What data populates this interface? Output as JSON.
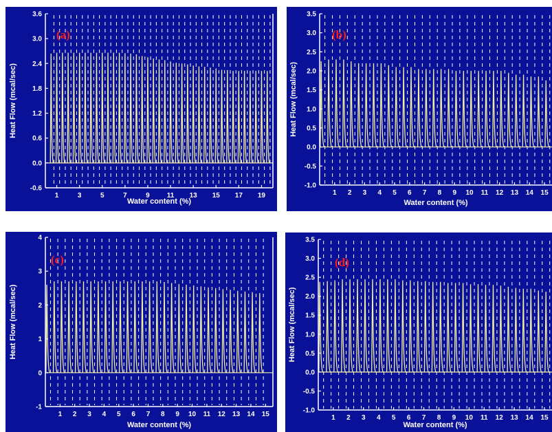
{
  "chart_data": [
    {
      "type": "line",
      "panel_label": "(a)",
      "xlabel": "Water content (%)",
      "ylabel": "Heat Flow (mcal/sec)",
      "xlim": [
        0,
        20
      ],
      "ylim": [
        -0.6,
        3.6
      ],
      "x_ticks": [
        1,
        3,
        5,
        7,
        9,
        11,
        13,
        15,
        17,
        19
      ],
      "y_ticks": [
        -0.6,
        0.0,
        0.6,
        1.2,
        1.8,
        2.4,
        3.0,
        3.6
      ],
      "y_tick_labels": [
        "-0.6",
        "0.0",
        "0.6",
        "1.2",
        "1.8",
        "2.4",
        "3.0",
        "3.6"
      ],
      "dashed_gridlines": true,
      "peak_x": [
        0.5,
        1.0,
        1.5,
        2.0,
        2.5,
        3.0,
        3.5,
        4.0,
        4.5,
        5.0,
        5.5,
        6.0,
        6.5,
        7.0,
        7.5,
        8.0,
        8.5,
        9.0,
        9.5,
        10.0,
        10.5,
        11.0,
        11.5,
        12.0,
        12.5,
        13.0,
        13.5,
        14.0,
        14.5,
        15.0,
        15.5,
        16.0,
        16.5,
        17.0,
        17.5,
        18.0,
        18.5,
        19.0,
        19.5
      ],
      "peak_heights": [
        2.64,
        2.66,
        2.66,
        2.66,
        2.66,
        2.66,
        2.66,
        2.66,
        2.66,
        2.66,
        2.66,
        2.66,
        2.66,
        2.65,
        2.64,
        2.62,
        2.58,
        2.55,
        2.52,
        2.5,
        2.48,
        2.45,
        2.42,
        2.4,
        2.38,
        2.35,
        2.33,
        2.32,
        2.3,
        2.28,
        2.25,
        2.24,
        2.22,
        2.22,
        2.22,
        2.22,
        2.22,
        2.22,
        2.22
      ]
    },
    {
      "type": "line",
      "panel_label": "(b)",
      "xlabel": "Water content (%)",
      "ylabel": "Heat Flow (mcal/sec)",
      "xlim": [
        0,
        15.5
      ],
      "ylim": [
        -1.0,
        3.5
      ],
      "x_ticks": [
        1,
        2,
        3,
        4,
        5,
        6,
        7,
        8,
        9,
        10,
        11,
        12,
        13,
        14,
        15
      ],
      "y_ticks": [
        -1.0,
        -0.5,
        0.0,
        0.5,
        1.0,
        1.5,
        2.0,
        2.5,
        3.0,
        3.5
      ],
      "y_tick_labels": [
        "-1.0",
        "-0.5",
        "0.0",
        "0.5",
        "1.0",
        "1.5",
        "2.0",
        "2.5",
        "3.0",
        "3.5"
      ],
      "dashed_gridlines": true,
      "peak_x": [
        0.1,
        0.6,
        1.1,
        1.6,
        2.1,
        2.6,
        3.1,
        3.6,
        4.1,
        4.6,
        5.1,
        5.6,
        6.1,
        6.6,
        7.1,
        7.6,
        8.1,
        8.6,
        9.1,
        9.6,
        10.1,
        10.6,
        11.1,
        11.6,
        12.1,
        12.6,
        13.1,
        13.6,
        14.1,
        14.6,
        15.1
      ],
      "peak_heights": [
        2.25,
        2.3,
        2.3,
        2.3,
        2.25,
        2.2,
        2.2,
        2.2,
        2.2,
        2.15,
        2.1,
        2.1,
        2.1,
        2.05,
        2.05,
        2.05,
        2.05,
        2.05,
        2.0,
        2.0,
        2.0,
        2.0,
        2.0,
        2.0,
        2.0,
        1.95,
        1.9,
        1.9,
        1.85,
        1.85,
        1.75
      ]
    },
    {
      "type": "line",
      "panel_label": "(c)",
      "xlabel": "Water content (%)",
      "ylabel": "Heat Flow (mcal/sec)",
      "xlim": [
        0,
        15.5
      ],
      "ylim": [
        -1,
        4
      ],
      "x_ticks": [
        1,
        2,
        3,
        4,
        5,
        6,
        7,
        8,
        9,
        10,
        11,
        12,
        13,
        14,
        15
      ],
      "y_ticks": [
        -1,
        0,
        1,
        2,
        3,
        4
      ],
      "y_tick_labels": [
        "-1",
        "0",
        "1",
        "2",
        "3",
        "4"
      ],
      "dashed_gridlines": true,
      "peak_x": [
        0.1,
        0.6,
        1.1,
        1.6,
        2.1,
        2.6,
        3.1,
        3.6,
        4.1,
        4.6,
        5.1,
        5.6,
        6.1,
        6.6,
        7.1,
        7.6,
        8.1,
        8.6,
        9.1,
        9.6,
        10.1,
        10.6,
        11.1,
        11.6,
        12.1,
        12.6,
        13.1,
        13.6,
        14.1,
        14.6
      ],
      "peak_heights": [
        2.6,
        2.7,
        2.7,
        2.7,
        2.7,
        2.7,
        2.7,
        2.7,
        2.7,
        2.7,
        2.7,
        2.7,
        2.7,
        2.7,
        2.7,
        2.7,
        2.68,
        2.65,
        2.62,
        2.6,
        2.58,
        2.55,
        2.52,
        2.5,
        2.47,
        2.45,
        2.42,
        2.4,
        2.38,
        2.35
      ]
    },
    {
      "type": "line",
      "panel_label": "(d)",
      "xlabel": "Water content (%)",
      "ylabel": "Heat Flow (mcal/sec)",
      "xlim": [
        0,
        15.5
      ],
      "ylim": [
        -1.0,
        3.5
      ],
      "x_ticks": [
        1,
        2,
        3,
        4,
        5,
        6,
        7,
        8,
        9,
        10,
        11,
        12,
        13,
        14,
        15
      ],
      "y_ticks": [
        -1.0,
        -0.5,
        0.0,
        0.5,
        1.0,
        1.5,
        2.0,
        2.5,
        3.0,
        3.5
      ],
      "y_tick_labels": [
        "-1.0",
        "-0.5",
        "0.0",
        "0.5",
        "1.0",
        "1.5",
        "2.0",
        "2.5",
        "3.0",
        "3.5"
      ],
      "dashed_gridlines": true,
      "peak_x": [
        0.1,
        0.6,
        1.1,
        1.6,
        2.1,
        2.6,
        3.1,
        3.6,
        4.1,
        4.6,
        5.1,
        5.6,
        6.1,
        6.6,
        7.1,
        7.6,
        8.1,
        8.6,
        9.1,
        9.6,
        10.1,
        10.6,
        11.1,
        11.6,
        12.1,
        12.6,
        13.1,
        13.6,
        14.1,
        14.6,
        15.1
      ],
      "peak_heights": [
        2.38,
        2.4,
        2.42,
        2.45,
        2.45,
        2.45,
        2.45,
        2.45,
        2.45,
        2.45,
        2.45,
        2.42,
        2.42,
        2.4,
        2.4,
        2.38,
        2.38,
        2.35,
        2.35,
        2.35,
        2.32,
        2.32,
        2.3,
        2.3,
        2.28,
        2.25,
        2.22,
        2.2,
        2.2,
        2.15,
        2.12
      ]
    }
  ],
  "colors": {
    "panel_background": "#0a1199",
    "axis": "#ffffff",
    "gridline": "#ffffff",
    "trace": "#f5f0a0",
    "panel_label": "#ff1a1a"
  }
}
